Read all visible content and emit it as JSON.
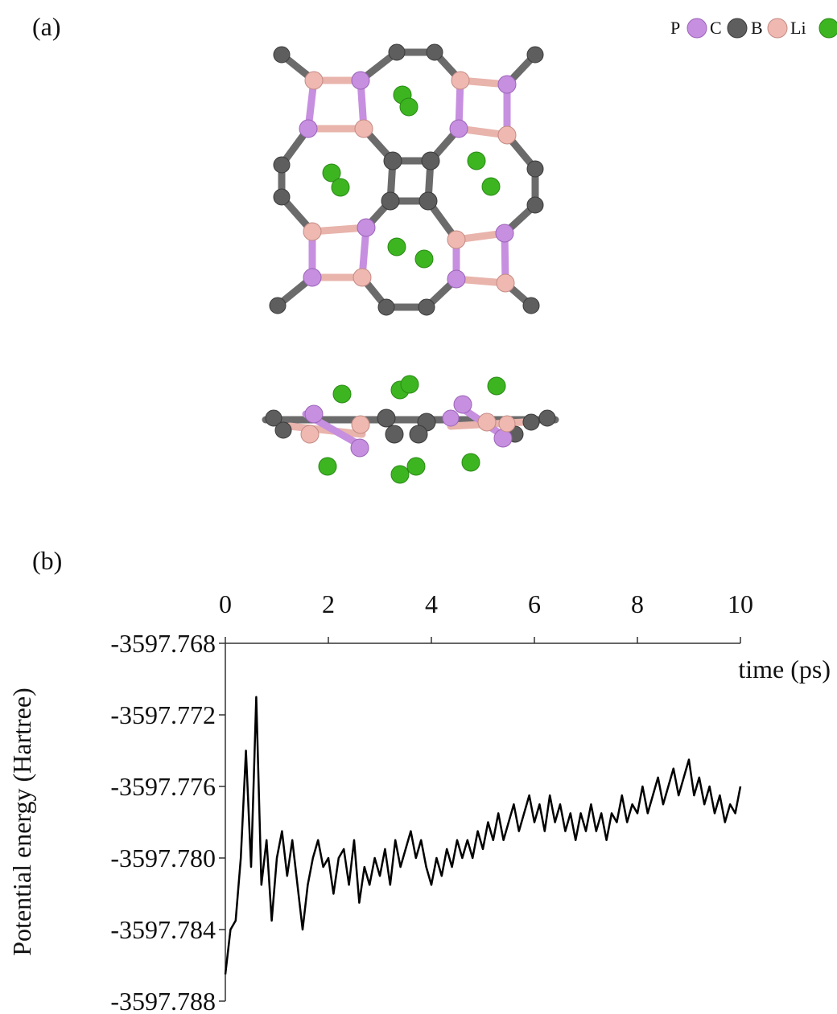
{
  "panels": {
    "a": "(a)",
    "b": "(b)"
  },
  "legend": [
    "P",
    "C",
    "B",
    "Li"
  ],
  "chart_data": {
    "type": "line",
    "x_label": "time (ps)",
    "y_label": "Potential energy (Hartree)",
    "color": "#000000",
    "xlim": [
      0,
      10
    ],
    "xticks": [
      0,
      2,
      4,
      6,
      8,
      10
    ],
    "ylim": [
      -3597.788,
      -3597.768
    ],
    "yticks": [
      -3597.768,
      -3597.772,
      -3597.776,
      {
        "value": -3597.78,
        "label": "-3597.780"
      },
      -3597.784,
      -3597.788
    ],
    "x": [
      0,
      0.1,
      0.2,
      0.3,
      0.4,
      0.5,
      0.6,
      0.7,
      0.8,
      0.9,
      1,
      1.1,
      1.2,
      1.3,
      1.4,
      1.5,
      1.6,
      1.7,
      1.8,
      1.9,
      2,
      2.1,
      2.2,
      2.3,
      2.4,
      2.5,
      2.6,
      2.7,
      2.8,
      2.9,
      3,
      3.1,
      3.2,
      3.3,
      3.4,
      3.5,
      3.6,
      3.7,
      3.8,
      3.9,
      4,
      4.1,
      4.2,
      4.3,
      4.4,
      4.5,
      4.6,
      4.7,
      4.8,
      4.9,
      5,
      5.1,
      5.2,
      5.3,
      5.4,
      5.5,
      5.6,
      5.7,
      5.8,
      5.9,
      6,
      6.1,
      6.2,
      6.3,
      6.4,
      6.5,
      6.6,
      6.7,
      6.8,
      6.9,
      7,
      7.1,
      7.2,
      7.3,
      7.4,
      7.5,
      7.6,
      7.7,
      7.8,
      7.9,
      8,
      8.1,
      8.2,
      8.3,
      8.4,
      8.5,
      8.6,
      8.7,
      8.8,
      8.9,
      9,
      9.1,
      9.2,
      9.3,
      9.4,
      9.5,
      9.6,
      9.7,
      9.8,
      9.9,
      10
    ],
    "values": [
      -3597.7865,
      -3597.784,
      -3597.7835,
      -3597.78,
      -3597.774,
      -3597.7805,
      -3597.771,
      -3597.7815,
      -3597.779,
      -3597.7835,
      -3597.78,
      -3597.7785,
      -3597.781,
      -3597.779,
      -3597.7815,
      -3597.784,
      -3597.7815,
      -3597.78,
      -3597.779,
      -3597.7805,
      -3597.78,
      -3597.782,
      -3597.78,
      -3597.7795,
      -3597.7815,
      -3597.779,
      -3597.7825,
      -3597.7805,
      -3597.7815,
      -3597.78,
      -3597.781,
      -3597.7795,
      -3597.7815,
      -3597.779,
      -3597.7805,
      -3597.7795,
      -3597.7785,
      -3597.78,
      -3597.779,
      -3597.7805,
      -3597.7815,
      -3597.78,
      -3597.781,
      -3597.7795,
      -3597.7805,
      -3597.779,
      -3597.78,
      -3597.779,
      -3597.78,
      -3597.7785,
      -3597.7795,
      -3597.778,
      -3597.779,
      -3597.7775,
      -3597.779,
      -3597.778,
      -3597.777,
      -3597.7785,
      -3597.7775,
      -3597.7765,
      -3597.778,
      -3597.777,
      -3597.7785,
      -3597.7765,
      -3597.778,
      -3597.777,
      -3597.7785,
      -3597.7775,
      -3597.779,
      -3597.7775,
      -3597.7785,
      -3597.777,
      -3597.7785,
      -3597.7775,
      -3597.779,
      -3597.7775,
      -3597.778,
      -3597.7765,
      -3597.778,
      -3597.777,
      -3597.7775,
      -3597.776,
      -3597.7775,
      -3597.7765,
      -3597.7755,
      -3597.777,
      -3597.776,
      -3597.775,
      -3597.7765,
      -3597.7755,
      -3597.7745,
      -3597.7765,
      -3597.7755,
      -3597.777,
      -3597.776,
      -3597.7775,
      -3597.7765,
      -3597.778,
      -3597.777,
      -3597.7775,
      -3597.776
    ]
  }
}
